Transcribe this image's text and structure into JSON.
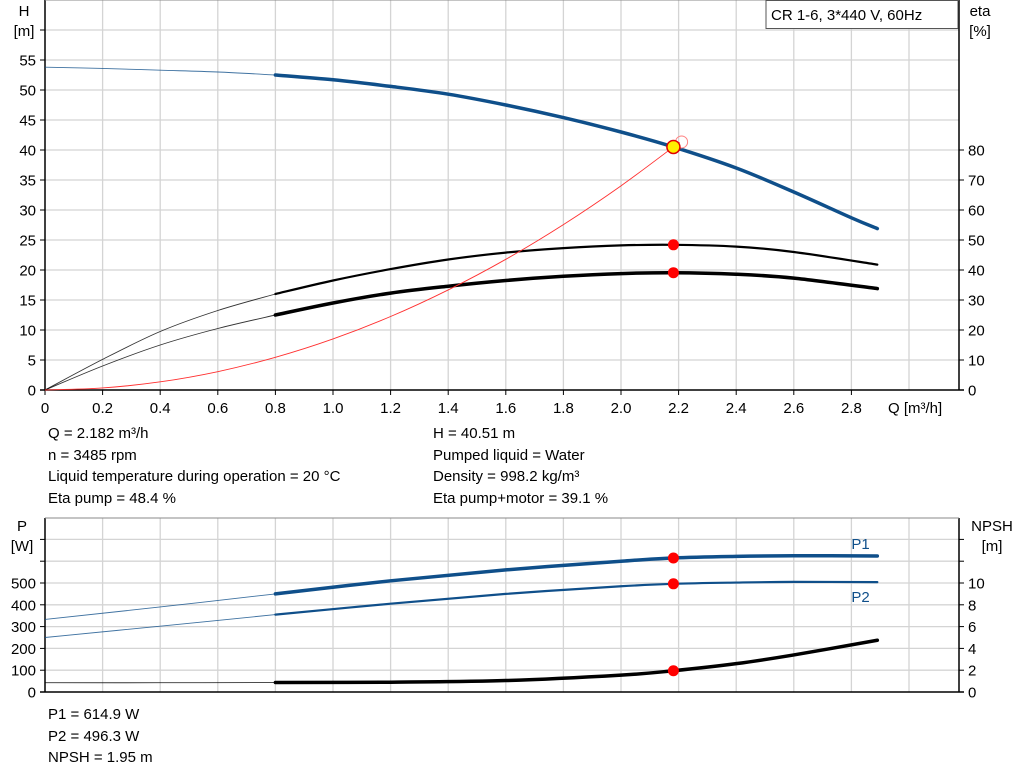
{
  "chart_data": [
    {
      "type": "line",
      "legend_box": "CR 1-6, 3*440 V, 60Hz",
      "xlabel": "Q [m³/h]",
      "ylabel_left": [
        "H",
        "[m]"
      ],
      "ylabel_right": [
        "eta",
        "[%]"
      ],
      "xlim": [
        0,
        3.17
      ],
      "ylim_left": [
        0,
        65
      ],
      "ylim_right": [
        0,
        130
      ],
      "x_ticks": [
        "0",
        "0.2",
        "0.4",
        "0.6",
        "0.8",
        "1.0",
        "1.2",
        "1.4",
        "1.6",
        "1.8",
        "2.0",
        "2.2",
        "2.4",
        "2.6",
        "2.8"
      ],
      "y_ticks_left": [
        "0",
        "5",
        "10",
        "15",
        "20",
        "25",
        "30",
        "35",
        "40",
        "45",
        "50",
        "55"
      ],
      "y_ticks_right": [
        "0",
        "10",
        "20",
        "30",
        "40",
        "50",
        "60",
        "70",
        "80"
      ],
      "grid": true,
      "series": [
        {
          "key": "H",
          "axis": "left",
          "color": "#0f4f8a",
          "thick_from": 0.8,
          "x": [
            0,
            0.2,
            0.4,
            0.6,
            0.8,
            1.0,
            1.2,
            1.4,
            1.6,
            1.8,
            2.0,
            2.182,
            2.4,
            2.6,
            2.8,
            2.89
          ],
          "y": [
            53.8,
            53.6,
            53.3,
            53.0,
            52.5,
            51.7,
            50.6,
            49.3,
            47.5,
            45.4,
            43.0,
            40.51,
            37.0,
            33.0,
            28.7,
            26.9
          ]
        },
        {
          "key": "eta-pump",
          "axis": "right",
          "color": "#000000",
          "thick_from": 0.8,
          "x": [
            0,
            0.2,
            0.4,
            0.6,
            0.8,
            1.0,
            1.2,
            1.4,
            1.6,
            1.8,
            2.0,
            2.182,
            2.4,
            2.6,
            2.89
          ],
          "y": [
            0,
            10.2,
            19.5,
            26.5,
            32,
            36.5,
            40.3,
            43.5,
            45.8,
            47.3,
            48.2,
            48.4,
            47.8,
            46,
            41.8
          ]
        },
        {
          "key": "eta-pump-motor",
          "axis": "right",
          "color": "#000000",
          "thick_from": 0.8,
          "x": [
            0,
            0.2,
            0.4,
            0.6,
            0.8,
            1.0,
            1.2,
            1.4,
            1.6,
            1.8,
            2.0,
            2.182,
            2.4,
            2.6,
            2.89
          ],
          "y": [
            0,
            8,
            15,
            20.5,
            25,
            29,
            32.3,
            34.6,
            36.5,
            37.9,
            38.8,
            39.1,
            38.6,
            37.3,
            33.8
          ]
        },
        {
          "key": "system-curve",
          "axis": "left",
          "color": "#ff3030",
          "x": [
            0,
            0.2,
            0.4,
            0.6,
            0.8,
            1.0,
            1.2,
            1.4,
            1.6,
            1.8,
            2.0,
            2.182,
            2.2
          ],
          "y": [
            0,
            0.34,
            1.36,
            3.06,
            5.45,
            8.51,
            12.25,
            16.68,
            21.78,
            27.57,
            34.03,
            40.51,
            41.2
          ]
        }
      ],
      "duty_points": [
        {
          "x": 2.182,
          "y": 40.51,
          "axis": "left",
          "style": "yellow"
        },
        {
          "x": 2.182,
          "y": 48.4,
          "axis": "right",
          "style": "red"
        },
        {
          "x": 2.182,
          "y": 39.1,
          "axis": "right",
          "style": "red"
        }
      ]
    },
    {
      "type": "line",
      "ylabel_left": [
        "P",
        "[W]"
      ],
      "ylabel_right": [
        "NPSH",
        "[m]"
      ],
      "xlim": [
        0,
        3.17
      ],
      "ylim_left": [
        0,
        800
      ],
      "ylim_right": [
        0,
        16
      ],
      "y_ticks_left": [
        "0",
        "100",
        "200",
        "300",
        "400",
        "500"
      ],
      "y_ticks_right": [
        "0",
        "2",
        "4",
        "6",
        "8",
        "10"
      ],
      "grid": true,
      "series": [
        {
          "key": "P1",
          "name": "P1",
          "axis": "left",
          "color": "#0f4f8a",
          "thick_from": 0.8,
          "x": [
            0,
            0.4,
            0.8,
            1.2,
            1.6,
            2.0,
            2.182,
            2.4,
            2.6,
            2.89
          ],
          "y": [
            333,
            390,
            450,
            510,
            560,
            600,
            614.9,
            622,
            625,
            624
          ]
        },
        {
          "key": "P2",
          "name": "P2",
          "axis": "left",
          "color": "#0f4f8a",
          "thick_from": 0.8,
          "x": [
            0,
            0.4,
            0.8,
            1.2,
            1.6,
            2.0,
            2.182,
            2.4,
            2.6,
            2.89
          ],
          "y": [
            250,
            302,
            355,
            405,
            450,
            485,
            496.3,
            502,
            505,
            504
          ]
        },
        {
          "key": "NPSH",
          "axis": "right",
          "color": "#000000",
          "thick_from": 0.8,
          "x": [
            0,
            0.4,
            0.8,
            1.2,
            1.6,
            2.0,
            2.182,
            2.4,
            2.6,
            2.89
          ],
          "y": [
            0.85,
            0.85,
            0.87,
            0.9,
            1.05,
            1.55,
            1.95,
            2.6,
            3.4,
            4.75
          ]
        }
      ],
      "duty_points": [
        {
          "x": 2.182,
          "y": 614.9,
          "axis": "left",
          "style": "red"
        },
        {
          "x": 2.182,
          "y": 496.3,
          "axis": "left",
          "style": "red"
        },
        {
          "x": 2.182,
          "y": 1.95,
          "axis": "right",
          "style": "red"
        }
      ]
    }
  ],
  "info_top_left": [
    "Q = 2.182 m³/h",
    "n = 3485 rpm",
    "Liquid temperature during operation = 20 °C",
    "Eta pump = 48.4 %"
  ],
  "info_top_right": [
    "H = 40.51 m",
    "Pumped liquid = Water",
    "Density = 998.2 kg/m³",
    "Eta pump+motor = 39.1 %"
  ],
  "info_bottom": [
    "P1 = 614.9 W",
    "P2 = 496.3 W",
    "NPSH = 1.95 m"
  ]
}
